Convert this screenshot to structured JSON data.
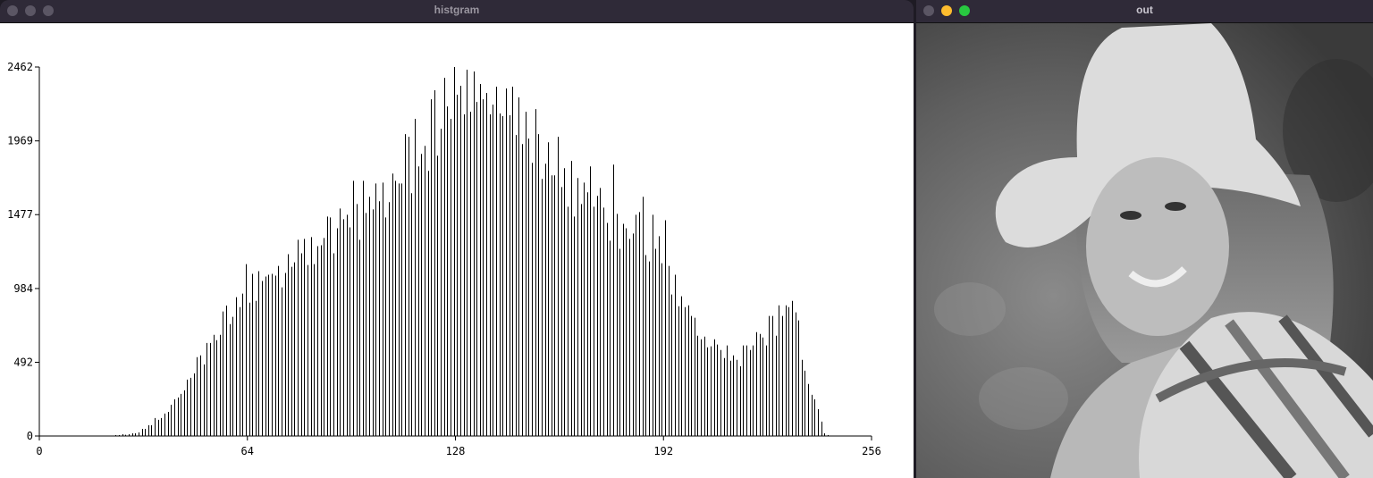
{
  "windows": {
    "histogram": {
      "title": "histgram",
      "active": false
    },
    "output": {
      "title": "out",
      "active": true
    }
  },
  "colors": {
    "titlebar": "#2f2a38",
    "inactive_light": "#5b5664",
    "close": "#5b5664",
    "minimize": "#febc2e",
    "zoom": "#28c840",
    "bars": "#000000"
  },
  "chart_data": {
    "type": "bar",
    "title": "",
    "xlabel": "",
    "ylabel": "",
    "xlim": [
      0,
      256
    ],
    "ylim": [
      0,
      2462
    ],
    "grid": false,
    "x_ticks": [
      "0",
      "64",
      "128",
      "192",
      "256"
    ],
    "y_ticks": [
      "0",
      "492",
      "984",
      "1477",
      "1969",
      "2462"
    ],
    "start_bin": 0,
    "values": [
      0,
      0,
      0,
      0,
      0,
      0,
      0,
      0,
      0,
      0,
      0,
      0,
      0,
      0,
      0,
      0,
      0,
      0,
      0,
      0,
      0,
      0,
      0,
      6,
      6,
      12,
      8,
      12,
      18,
      18,
      24,
      48,
      48,
      72,
      72,
      120,
      108,
      120,
      150,
      161,
      209,
      245,
      257,
      281,
      305,
      376,
      388,
      418,
      526,
      538,
      478,
      621,
      621,
      675,
      639,
      675,
      831,
      870,
      747,
      795,
      926,
      860,
      950,
      1147,
      890,
      1082,
      902,
      1100,
      1034,
      1064,
      1076,
      1082,
      1070,
      1135,
      992,
      1088,
      1213,
      1129,
      1159,
      1309,
      1219,
      1315,
      1141,
      1327,
      1147,
      1267,
      1273,
      1321,
      1464,
      1458,
      1219,
      1386,
      1518,
      1446,
      1476,
      1392,
      1703,
      1548,
      1309,
      1703,
      1488,
      1596,
      1512,
      1685,
      1566,
      1691,
      1458,
      1560,
      1751,
      1703,
      1685,
      1685,
      2014,
      1996,
      1620,
      2116,
      1799,
      1882,
      1936,
      1769,
      2247,
      2307,
      1870,
      2050,
      2390,
      2199,
      2116,
      2462,
      2277,
      2337,
      2146,
      2444,
      2163,
      2432,
      2229,
      2349,
      2247,
      2289,
      2146,
      2211,
      2331,
      2152,
      2134,
      2319,
      2140,
      2331,
      2008,
      2259,
      1948,
      2163,
      1984,
      1823,
      2181,
      2014,
      1715,
      1817,
      1960,
      1739,
      1739,
      1996,
      1661,
      1787,
      1530,
      1835,
      1464,
      1721,
      1548,
      1691,
      1626,
      1799,
      1530,
      1602,
      1655,
      1524,
      1422,
      1303,
      1811,
      1482,
      1249,
      1416,
      1386,
      1315,
      1351,
      1476,
      1494,
      1596,
      1207,
      1165,
      1476,
      1249,
      1333,
      1153,
      1440,
      1135,
      944,
      1076,
      866,
      932,
      860,
      872,
      801,
      789,
      669,
      645,
      663,
      592,
      598,
      645,
      610,
      574,
      520,
      604,
      502,
      538,
      508,
      466,
      604,
      604,
      574,
      604,
      693,
      681,
      657,
      604,
      801,
      801,
      669,
      872,
      801,
      872,
      860,
      902,
      825,
      771,
      508,
      436,
      347,
      275,
      245,
      179,
      96,
      18,
      6,
      0,
      0,
      0,
      0,
      0,
      0,
      0,
      0,
      0,
      0,
      0,
      0,
      0
    ]
  }
}
